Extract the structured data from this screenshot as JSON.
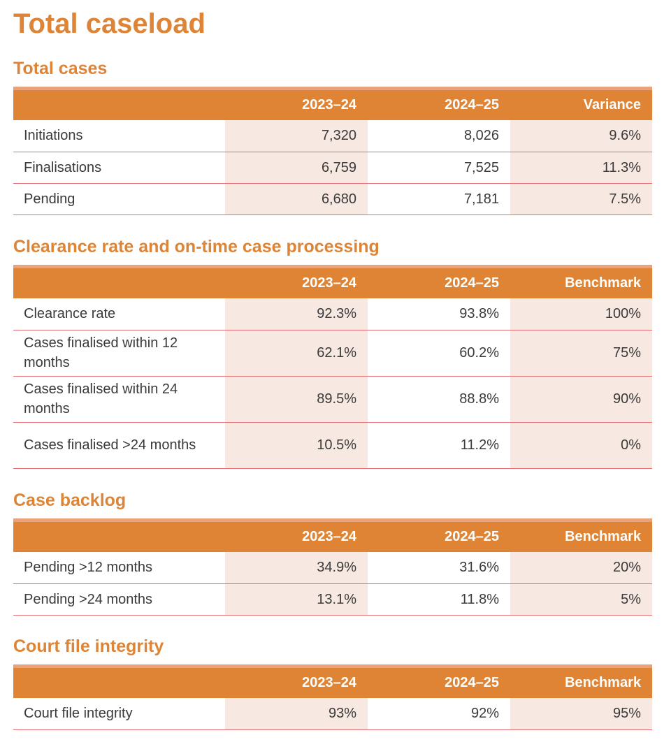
{
  "page_title": "Total caseload",
  "sections": [
    {
      "heading": "Total cases",
      "columns": [
        "",
        "2023–24",
        "2024–25",
        "Variance"
      ],
      "rows": [
        [
          "Initiations",
          "7,320",
          "8,026",
          "9.6%"
        ],
        [
          "Finalisations",
          "6,759",
          "7,525",
          "11.3%"
        ],
        [
          "Pending",
          "6,680",
          "7,181",
          "7.5%"
        ]
      ]
    },
    {
      "heading": "Clearance rate and on-time case processing",
      "columns": [
        "",
        "2023–24",
        "2024–25",
        "Benchmark"
      ],
      "rows": [
        [
          "Clearance rate",
          "92.3%",
          "93.8%",
          "100%"
        ],
        [
          "Cases finalised within 12 months",
          "62.1%",
          "60.2%",
          "75%"
        ],
        [
          "Cases finalised within 24 months",
          "89.5%",
          "88.8%",
          "90%"
        ],
        [
          "Cases finalised >24 months",
          "10.5%",
          "11.2%",
          "0%"
        ]
      ]
    },
    {
      "heading": "Case backlog",
      "columns": [
        "",
        "2023–24",
        "2024–25",
        "Benchmark"
      ],
      "rows": [
        [
          "Pending >12 months",
          "34.9%",
          "31.6%",
          "20%"
        ],
        [
          "Pending >24 months",
          "13.1%",
          "11.8%",
          "5%"
        ]
      ]
    },
    {
      "heading": "Court file integrity",
      "columns": [
        "",
        "2023–24",
        "2024–25",
        "Benchmark"
      ],
      "rows": [
        [
          "Court file integrity",
          "93%",
          "92%",
          "95%"
        ]
      ]
    }
  ]
}
